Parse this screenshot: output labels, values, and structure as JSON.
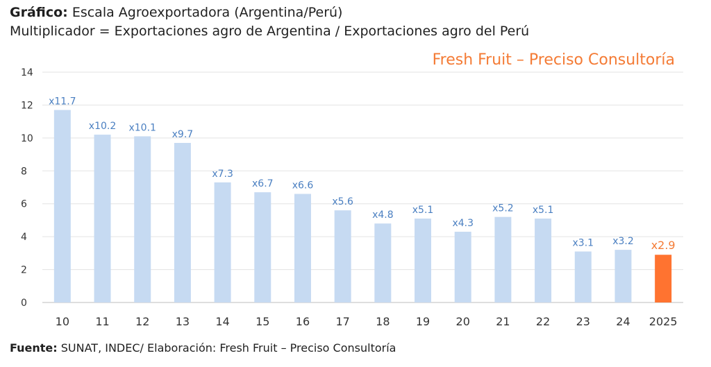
{
  "header": {
    "line1_prefix": "Gráfico:",
    "line1_text": " Escala Agroexportadora (Argentina/Perú)",
    "line2_text": "Multiplicador = Exportaciones agro de Argentina / Exportaciones agro del Perú",
    "brand": "Fresh Fruit – Preciso Consultoría"
  },
  "footer": {
    "source_prefix": "Fuente:",
    "source_text": " SUNAT, INDEC/ Elaboración: Fresh Fruit – Preciso Consultoría"
  },
  "colors": {
    "bar": "#c6daf2",
    "bar_highlight": "#ff7330",
    "label": "#4a7fc1",
    "label_highlight": "#f47b35",
    "grid": "#e3e3e3"
  },
  "chart_data": {
    "type": "bar",
    "categories": [
      "10",
      "11",
      "12",
      "13",
      "14",
      "15",
      "16",
      "17",
      "18",
      "19",
      "20",
      "21",
      "22",
      "23",
      "24",
      "2025"
    ],
    "values": [
      11.7,
      10.2,
      10.1,
      9.7,
      7.3,
      6.7,
      6.6,
      5.6,
      4.8,
      5.1,
      4.3,
      5.2,
      5.1,
      3.1,
      3.2,
      2.9
    ],
    "data_labels": [
      "x11.7",
      "x10.2",
      "x10.1",
      "x9.7",
      "x7.3",
      "x6.7",
      "x6.6",
      "x5.6",
      "x4.8",
      "x5.1",
      "x4.3",
      "x5.2",
      "x5.1",
      "x3.1",
      "x3.2",
      "x2.9"
    ],
    "highlight_index": 15,
    "ylim": [
      0,
      14
    ],
    "yticks": [
      0,
      2,
      4,
      6,
      8,
      10,
      12,
      14
    ],
    "grid": true
  }
}
